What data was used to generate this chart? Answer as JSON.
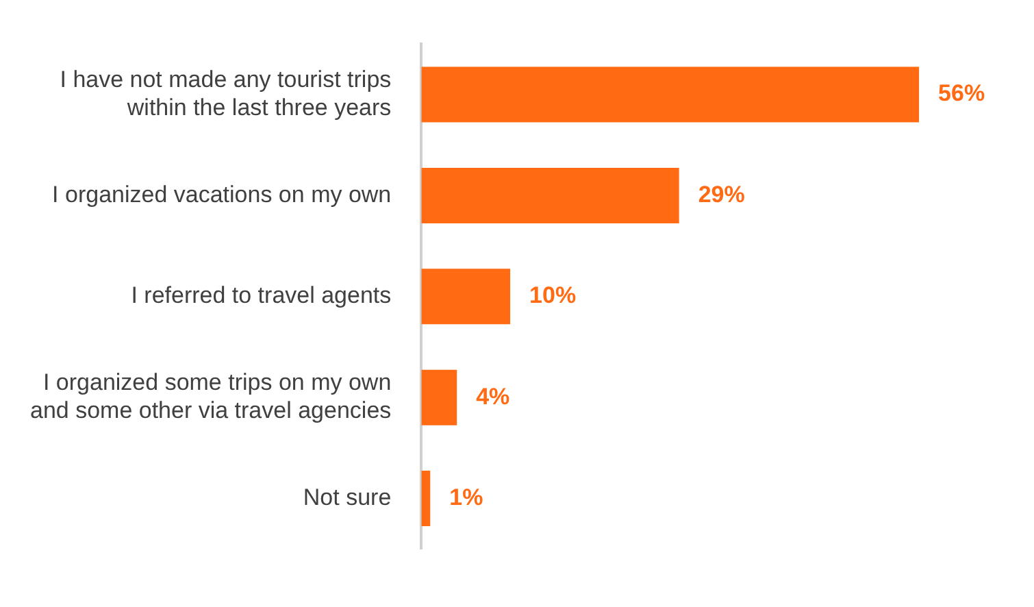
{
  "chart_data": {
    "type": "bar",
    "orientation": "horizontal",
    "categories": [
      "I have not made any tourist trips within the last three years",
      "I organized vacations on my own",
      "I referred to travel agents",
      "I organized some trips on my own and some other via travel agencies",
      "Not sure"
    ],
    "values": [
      56,
      29,
      10,
      4,
      1
    ],
    "color": "#ff6a13",
    "value_labels": [
      "56%",
      "29%",
      "10%",
      "4%",
      "1%"
    ],
    "legend": false
  }
}
